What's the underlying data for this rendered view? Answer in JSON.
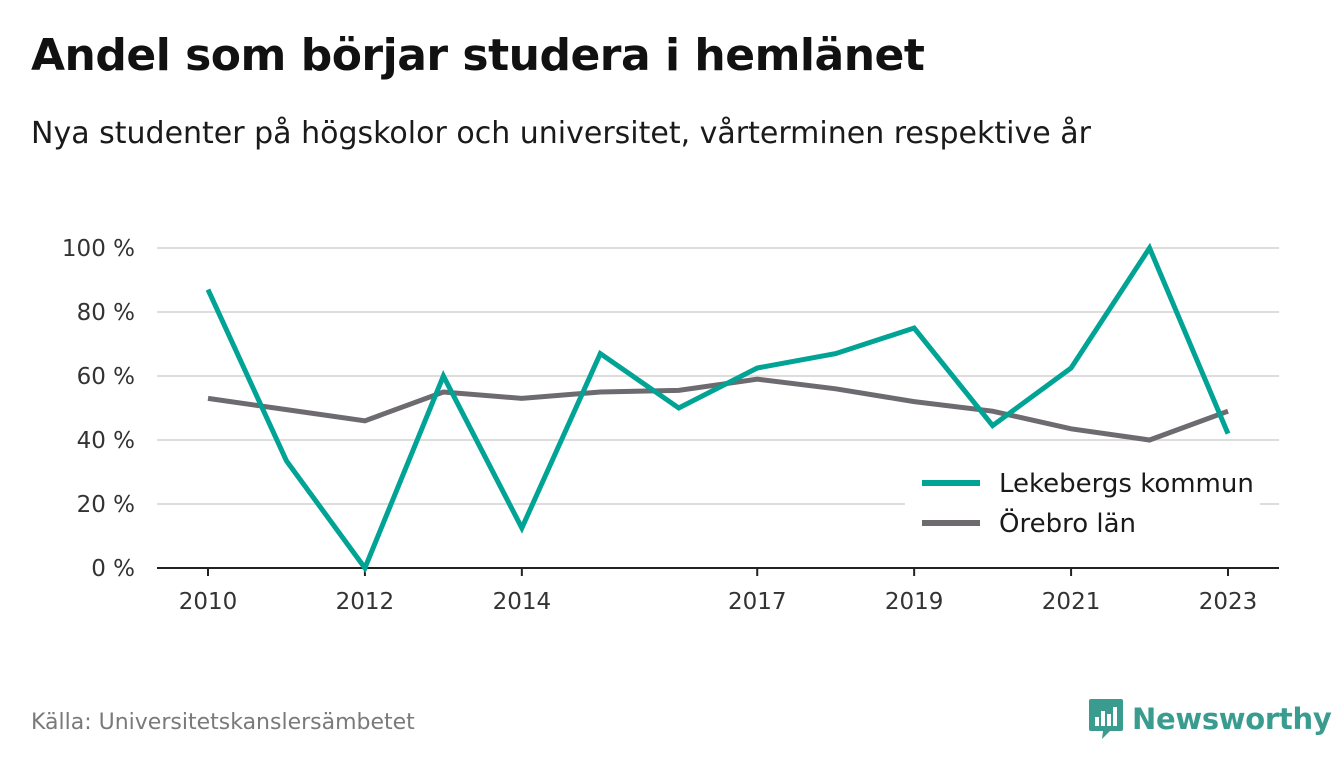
{
  "title": "Andel som börjar studera i hemlänet",
  "subtitle": "Nya studenter på högskolor och universitet, vårterminen respektive år",
  "source": "Källa: Universitetskanslersämbetet",
  "brand": {
    "name": "Newsworthy",
    "color": "#3a9c8f",
    "icon": "newsworthy-logo-icon"
  },
  "chart_data": {
    "type": "line",
    "x": [
      2010,
      2011,
      2012,
      2013,
      2014,
      2015,
      2016,
      2017,
      2018,
      2019,
      2020,
      2021,
      2022,
      2023
    ],
    "x_tick_labels": [
      "2010",
      "2012",
      "2014",
      "2017",
      "2019",
      "2021",
      "2023"
    ],
    "y_ticks": [
      0,
      20,
      40,
      60,
      80,
      100
    ],
    "y_tick_labels": [
      "0 %",
      "20 %",
      "40 %",
      "60 %",
      "80 %",
      "100 %"
    ],
    "ylim": [
      0,
      100
    ],
    "grid": true,
    "legend_position": "bottom-right",
    "series": [
      {
        "name": "Lekebergs kommun",
        "color": "#00a394",
        "values": [
          87,
          33.5,
          0,
          60,
          12.5,
          67,
          50,
          62.5,
          67,
          75,
          44.5,
          62.5,
          100,
          42
        ]
      },
      {
        "name": "Örebro län",
        "color": "#6e6b70",
        "values": [
          53,
          49.5,
          46,
          55,
          53,
          55,
          55.5,
          59,
          56,
          52,
          49,
          43.5,
          40,
          49
        ]
      }
    ]
  }
}
